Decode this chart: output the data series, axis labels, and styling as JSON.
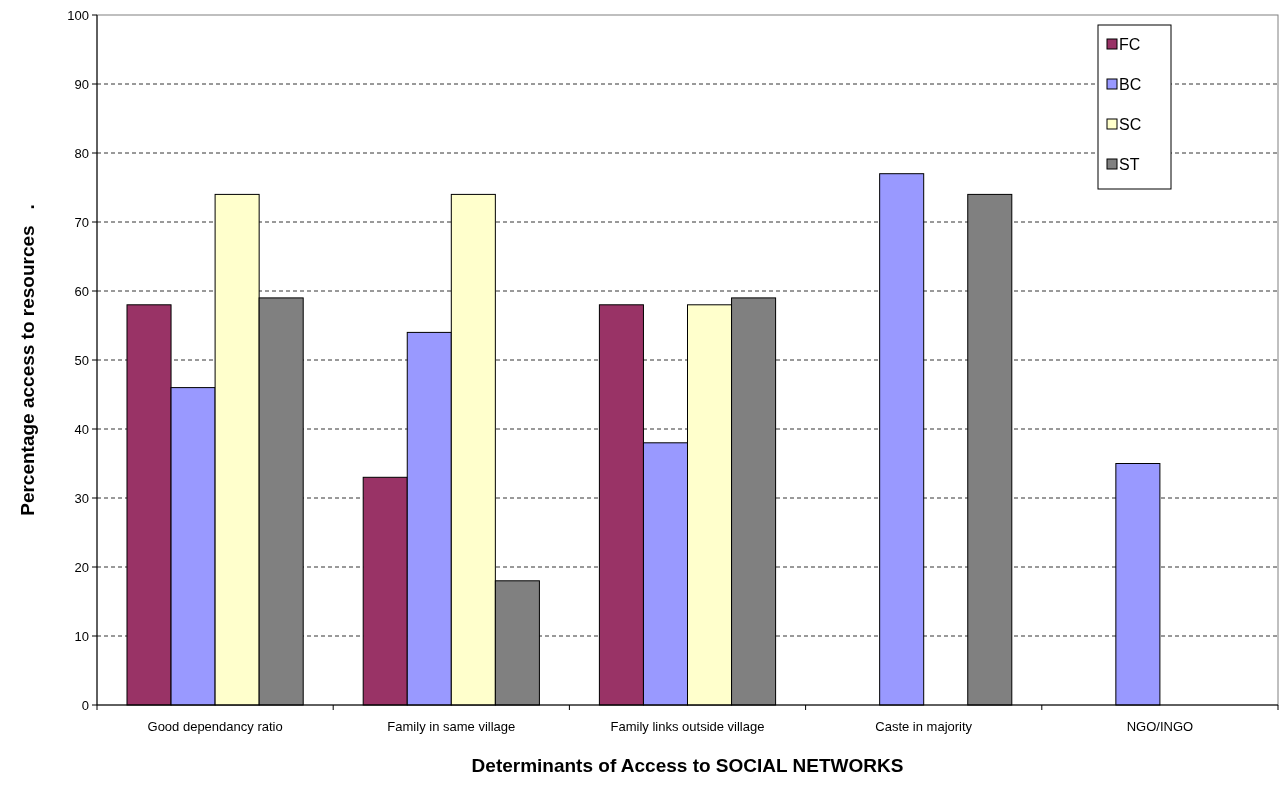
{
  "chart_data": {
    "type": "bar",
    "xlabel": "Determinants of Access to SOCIAL NETWORKS",
    "ylabel": "Percentage access to resources   .",
    "categories": [
      "Good dependancy ratio",
      "Family in same village",
      "Family links outside village",
      "Caste in majority",
      "NGO/INGO"
    ],
    "series": [
      {
        "name": "FC",
        "color": "#993366",
        "values": [
          58,
          33,
          58,
          null,
          null
        ]
      },
      {
        "name": "BC",
        "color": "#9999ff",
        "values": [
          46,
          54,
          38,
          77,
          35
        ]
      },
      {
        "name": "SC",
        "color": "#ffffcc",
        "values": [
          74,
          74,
          58,
          null,
          null
        ]
      },
      {
        "name": "ST",
        "color": "#808080",
        "values": [
          59,
          18,
          59,
          74,
          null
        ]
      }
    ],
    "ylim": [
      0,
      100
    ],
    "yticks": [
      0,
      10,
      20,
      30,
      40,
      50,
      60,
      70,
      80,
      90,
      100
    ],
    "grid": "y",
    "legend": "top right"
  }
}
